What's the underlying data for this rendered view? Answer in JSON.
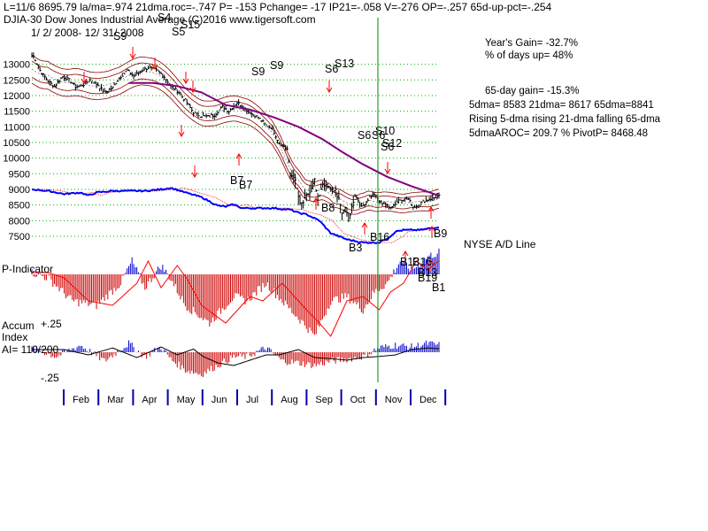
{
  "header": {
    "line1": "L=11/6   8695.79   la/ma=.974  21dma.roc=-.747  P= -153  Pchange= -17  IP21=-.058  V=-276  OP=-.257  65d-up-pct=-.254",
    "line2": "DJIA-30   Dow Jones Industrial Average   (C)2016 www.tigersoft.com",
    "date_range": "1/ 2/ 2008-  12/ 31/ 2008"
  },
  "stats": {
    "years_gain": "Year's Gain= -32.7%",
    "pct_days_up": "% of days up= 48%",
    "gain65": "65-day gain= -15.3%",
    "dma_values": "5dma= 8583  21dma= 8617  65dma=8841",
    "dma_trend": "Rising 5-dma  rising 21-dma  falling 65-dma",
    "roc_pivot": "5dmaAROC= 209.7 %   PivotP= 8468.48"
  },
  "labels": {
    "nyse_ad": "NYSE A/D Line",
    "p_indicator": "P-Indicator",
    "accum": "Accum",
    "index": "Index",
    "ai": "AI= 110/200",
    "plus25": "+.25",
    "minus25": "-.25"
  },
  "colors": {
    "price_bars": "#000000",
    "bands": "#8b0000",
    "ma65": "#800080",
    "ad_line": "#0000ff",
    "ad_ma": "#ff0000",
    "pos_hist": "#0000cc",
    "neg_hist": "#cc0000",
    "grid": "#00aa00",
    "arrow": "#ff0000",
    "vline": "#008800"
  },
  "signals": [
    "S9",
    "S4",
    "S5",
    "S15",
    "S9",
    "S9",
    "S6",
    "S13",
    "S6",
    "S6",
    "S10",
    "S12",
    "S6",
    "B7",
    "B8",
    "B3",
    "B16",
    "B13",
    "B1",
    "B19",
    "B9",
    "B13",
    "B7",
    "B16"
  ],
  "chart_data": {
    "type": "line",
    "title": "DJIA-30 Dow Jones Industrial Average",
    "x_months": [
      "Feb",
      "Mar",
      "Apr",
      "May",
      "Jun",
      "Jul",
      "Aug",
      "Sep",
      "Oct",
      "Nov",
      "Dec"
    ],
    "ylim": [
      7500,
      13300
    ],
    "y_ticks": [
      13000,
      12500,
      12000,
      11500,
      11000,
      10500,
      10000,
      9500,
      9000,
      8500,
      8000,
      7500
    ],
    "price_points": [
      [
        1,
        13260
      ],
      [
        5,
        12800
      ],
      [
        10,
        12450
      ],
      [
        14,
        12300
      ],
      [
        19,
        12600
      ],
      [
        23,
        12500
      ],
      [
        27,
        12280
      ],
      [
        32,
        12350
      ],
      [
        36,
        12500
      ],
      [
        41,
        12330
      ],
      [
        45,
        12100
      ],
      [
        50,
        12250
      ],
      [
        54,
        12560
      ],
      [
        59,
        12800
      ],
      [
        63,
        12620
      ],
      [
        68,
        12800
      ],
      [
        72,
        12890
      ],
      [
        77,
        12810
      ],
      [
        82,
        12600
      ],
      [
        86,
        12300
      ],
      [
        91,
        12100
      ],
      [
        95,
        11840
      ],
      [
        100,
        11460
      ],
      [
        104,
        11350
      ],
      [
        109,
        11330
      ],
      [
        113,
        11380
      ],
      [
        118,
        11650
      ],
      [
        122,
        11500
      ],
      [
        127,
        11780
      ],
      [
        131,
        11620
      ],
      [
        136,
        11420
      ],
      [
        140,
        11300
      ],
      [
        145,
        11050
      ],
      [
        149,
        10950
      ],
      [
        153,
        10480
      ],
      [
        156,
        10380
      ],
      [
        158,
        10290
      ],
      [
        160,
        9450
      ],
      [
        162,
        9420
      ],
      [
        163,
        9270
      ],
      [
        166,
        8530
      ],
      [
        168,
        8580
      ],
      [
        170,
        8810
      ],
      [
        172,
        8890
      ],
      [
        175,
        9300
      ],
      [
        177,
        8610
      ],
      [
        180,
        9180
      ],
      [
        182,
        9120
      ],
      [
        185,
        9040
      ],
      [
        187,
        8940
      ],
      [
        190,
        8690
      ],
      [
        192,
        8280
      ],
      [
        194,
        8420
      ],
      [
        196,
        7990
      ],
      [
        198,
        8440
      ],
      [
        200,
        8800
      ],
      [
        202,
        8650
      ],
      [
        204,
        8420
      ],
      [
        207,
        8600
      ],
      [
        209,
        8760
      ],
      [
        212,
        8850
      ],
      [
        215,
        8620
      ],
      [
        218,
        8560
      ],
      [
        221,
        8420
      ],
      [
        224,
        8500
      ],
      [
        227,
        8660
      ],
      [
        230,
        8700
      ],
      [
        233,
        8690
      ],
      [
        236,
        8450
      ],
      [
        239,
        8470
      ],
      [
        242,
        8620
      ],
      [
        247,
        8700
      ],
      [
        252,
        8780
      ]
    ],
    "ma65_points": [
      [
        60,
        12400
      ],
      [
        75,
        12400
      ],
      [
        90,
        12300
      ],
      [
        105,
        12100
      ],
      [
        120,
        11700
      ],
      [
        135,
        11550
      ],
      [
        150,
        11300
      ],
      [
        165,
        11000
      ],
      [
        180,
        10600
      ],
      [
        192,
        10200
      ],
      [
        205,
        9800
      ],
      [
        220,
        9400
      ],
      [
        235,
        9100
      ],
      [
        252,
        8800
      ]
    ],
    "ad_points": [
      [
        0,
        9000
      ],
      [
        10,
        8950
      ],
      [
        20,
        8850
      ],
      [
        30,
        8900
      ],
      [
        35,
        8800
      ],
      [
        40,
        8900
      ],
      [
        50,
        8950
      ],
      [
        60,
        8950
      ],
      [
        70,
        8950
      ],
      [
        80,
        9000
      ],
      [
        86,
        9050
      ],
      [
        95,
        8900
      ],
      [
        105,
        8750
      ],
      [
        115,
        8480
      ],
      [
        120,
        8450
      ],
      [
        125,
        8520
      ],
      [
        130,
        8400
      ],
      [
        140,
        8400
      ],
      [
        150,
        8400
      ],
      [
        155,
        8370
      ],
      [
        160,
        8350
      ],
      [
        165,
        8250
      ],
      [
        170,
        8200
      ],
      [
        178,
        8000
      ],
      [
        185,
        7600
      ],
      [
        195,
        7400
      ],
      [
        205,
        7300
      ],
      [
        215,
        7300
      ],
      [
        222,
        7500
      ],
      [
        225,
        7650
      ],
      [
        230,
        7700
      ],
      [
        240,
        7700
      ],
      [
        252,
        7800
      ]
    ]
  }
}
